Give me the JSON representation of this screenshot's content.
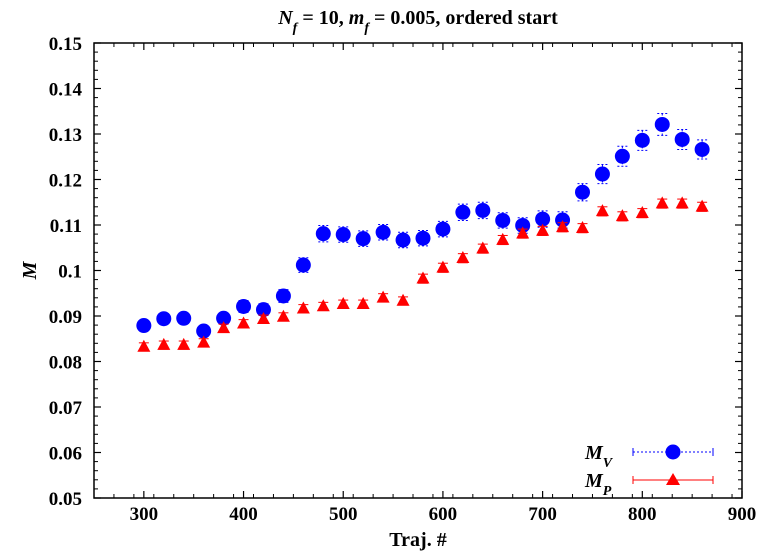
{
  "chart_data": {
    "type": "scatter",
    "title": {
      "parts": [
        {
          "text": "N",
          "italic": true
        },
        {
          "text": "f",
          "italic": true,
          "sub": true
        },
        {
          "text": " = 10, "
        },
        {
          "text": "m",
          "italic": true
        },
        {
          "text": "f",
          "italic": true,
          "sub": true
        },
        {
          "text": " = 0.005, ordered start"
        }
      ]
    },
    "xlabel": "Traj. #",
    "ylabel": "M",
    "xlim": [
      250,
      900
    ],
    "ylim": [
      0.05,
      0.15
    ],
    "xticks": [
      300,
      400,
      500,
      600,
      700,
      800,
      900
    ],
    "yticks": [
      0.05,
      0.06,
      0.07,
      0.08,
      0.09,
      0.1,
      0.11,
      0.12,
      0.13,
      0.14,
      0.15
    ],
    "x_tick_labels": [
      "300",
      "400",
      "500",
      "600",
      "700",
      "800",
      "900"
    ],
    "y_tick_labels": [
      "0.05",
      "0.06",
      "0.07",
      "0.08",
      "0.09",
      "0.1",
      "0.11",
      "0.12",
      "0.13",
      "0.14",
      "0.15"
    ],
    "grid": false,
    "legend_position": "bottom-right",
    "series": [
      {
        "name": "M_V",
        "label": {
          "main": "M",
          "sub": "V"
        },
        "marker": "circle",
        "color": "#0000ff",
        "line": "dotted",
        "x": [
          300,
          320,
          340,
          360,
          380,
          400,
          420,
          440,
          460,
          480,
          500,
          520,
          540,
          560,
          580,
          600,
          620,
          640,
          660,
          680,
          700,
          720,
          740,
          760,
          780,
          800,
          820,
          840,
          860
        ],
        "y": [
          0.0879,
          0.0894,
          0.0895,
          0.0867,
          0.0895,
          0.0921,
          0.0914,
          0.0944,
          0.1012,
          0.1081,
          0.1079,
          0.107,
          0.1084,
          0.1067,
          0.1071,
          0.1091,
          0.1128,
          0.1132,
          0.111,
          0.1099,
          0.1113,
          0.1111,
          0.1172,
          0.1212,
          0.1251,
          0.1286,
          0.1321,
          0.1288,
          0.1266
        ],
        "err": [
          0.0011,
          0.0011,
          0.0011,
          0.0011,
          0.0011,
          0.0013,
          0.0013,
          0.0014,
          0.0016,
          0.0018,
          0.0017,
          0.0017,
          0.0017,
          0.0017,
          0.0017,
          0.0017,
          0.0018,
          0.0018,
          0.0017,
          0.0017,
          0.0018,
          0.0018,
          0.0019,
          0.0021,
          0.0022,
          0.0022,
          0.0024,
          0.0022,
          0.0021
        ]
      },
      {
        "name": "M_P",
        "label": {
          "main": "M",
          "sub": "P"
        },
        "marker": "triangle",
        "color": "#ff0000",
        "line": "solid",
        "x": [
          300,
          320,
          340,
          360,
          380,
          400,
          420,
          440,
          460,
          480,
          500,
          520,
          540,
          560,
          580,
          600,
          620,
          640,
          660,
          680,
          700,
          720,
          740,
          760,
          780,
          800,
          820,
          840,
          860
        ],
        "y": [
          0.0832,
          0.0836,
          0.0836,
          0.0841,
          0.0873,
          0.0883,
          0.0893,
          0.0898,
          0.0916,
          0.0921,
          0.0926,
          0.0926,
          0.094,
          0.0933,
          0.0982,
          0.1006,
          0.1027,
          0.1048,
          0.1067,
          0.1081,
          0.1087,
          0.1095,
          0.1093,
          0.113,
          0.1119,
          0.1126,
          0.1147,
          0.1147,
          0.114
        ],
        "err": [
          0.0009,
          0.0009,
          0.0009,
          0.0009,
          0.0009,
          0.0009,
          0.0009,
          0.0009,
          0.0009,
          0.0009,
          0.0009,
          0.0009,
          0.0009,
          0.0009,
          0.001,
          0.001,
          0.001,
          0.001,
          0.001,
          0.001,
          0.001,
          0.001,
          0.001,
          0.001,
          0.001,
          0.001,
          0.001,
          0.001,
          0.001
        ]
      }
    ]
  }
}
